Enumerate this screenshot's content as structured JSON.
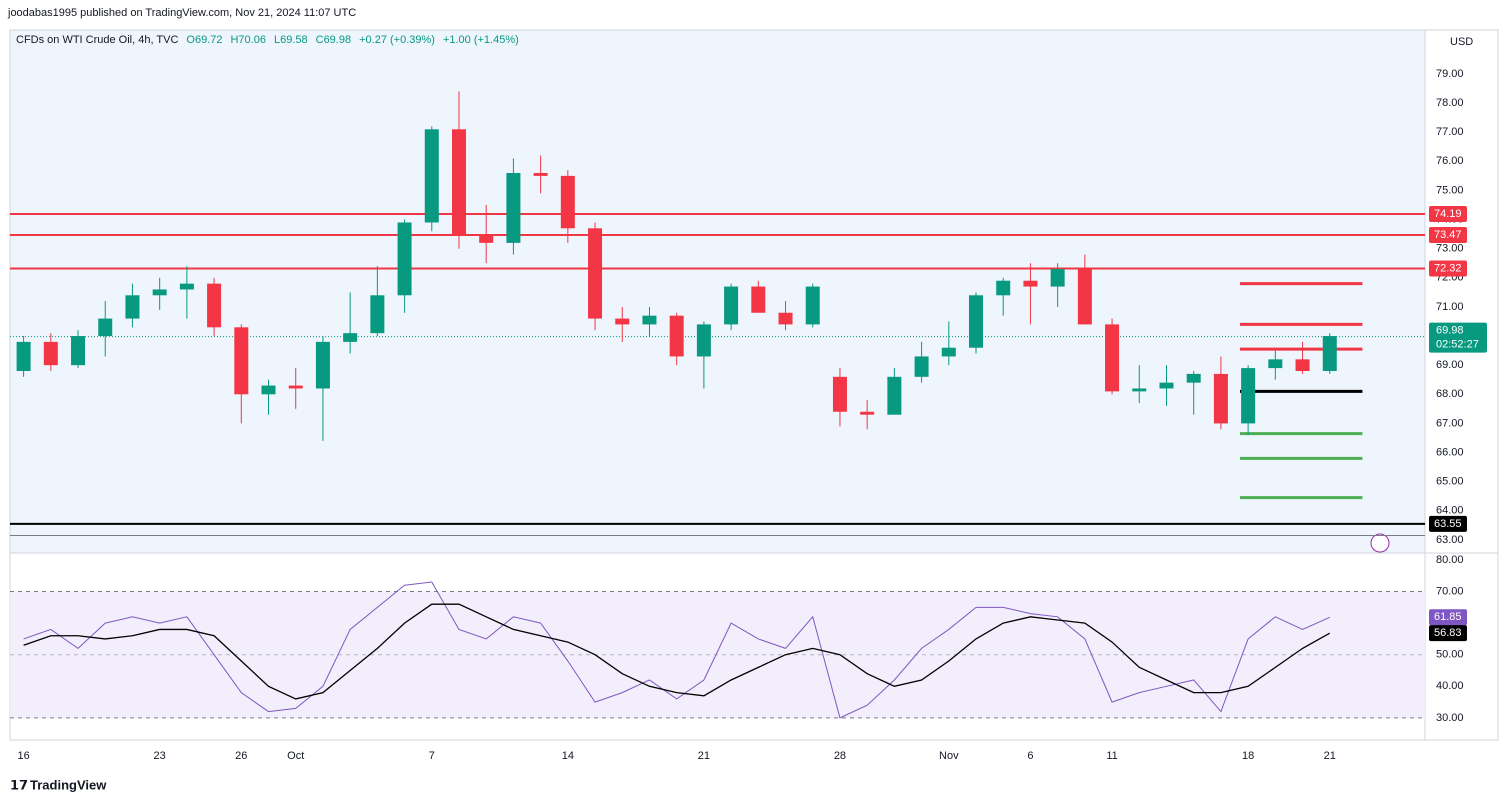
{
  "header": {
    "byline": "joodabas1995 published on TradingView.com, Nov 21, 2024 11:07 UTC",
    "symbol": "CFDs on WTI Crude Oil, 4h, TVC",
    "ohlc": [
      "O69.72",
      "H70.06",
      "L69.58",
      "C69.98"
    ],
    "change": "+0.27 (+0.39%)",
    "change2": "+1.00 (+1.45%)",
    "currency": "USD",
    "brand": "TradingView"
  },
  "chart_data": [
    {
      "type": "candlestick",
      "up_color": "#089981",
      "down_color": "#f23645",
      "xlim": [
        -0.5,
        51.5
      ],
      "xticks": [
        {
          "value": 0,
          "label": "16"
        },
        {
          "value": 5,
          "label": "23"
        },
        {
          "value": 8,
          "label": "26"
        },
        {
          "value": 10,
          "label": "Oct"
        },
        {
          "value": 15,
          "label": "7"
        },
        {
          "value": 20,
          "label": "14"
        },
        {
          "value": 25,
          "label": "21"
        },
        {
          "value": 30,
          "label": "28"
        },
        {
          "value": 34,
          "label": "Nov"
        },
        {
          "value": 37,
          "label": "6"
        },
        {
          "value": 40,
          "label": "11"
        },
        {
          "value": 45,
          "label": "18"
        },
        {
          "value": 48,
          "label": "21"
        }
      ],
      "ylim": [
        62.55,
        80.51
      ],
      "yticks": [
        {
          "value": 63,
          "label": "63.00"
        },
        {
          "value": 64,
          "label": "64.00"
        },
        {
          "value": 65,
          "label": "65.00"
        },
        {
          "value": 66,
          "label": "66.00"
        },
        {
          "value": 67,
          "label": "67.00"
        },
        {
          "value": 68,
          "label": "68.00"
        },
        {
          "value": 69,
          "label": "69.00"
        },
        {
          "value": 70,
          "label": "70.00"
        },
        {
          "value": 71,
          "label": "71.00"
        },
        {
          "value": 72,
          "label": "72.00"
        },
        {
          "value": 73,
          "label": "73.00"
        },
        {
          "value": 74,
          "label": "74.00"
        },
        {
          "value": 75,
          "label": "75.00"
        },
        {
          "value": 76,
          "label": "76.00"
        },
        {
          "value": 77,
          "label": "77.00"
        },
        {
          "value": 78,
          "label": "78.00"
        },
        {
          "value": 79,
          "label": "79.00"
        }
      ],
      "ohlc": [
        [
          68.8,
          70.0,
          68.6,
          69.8
        ],
        [
          69.8,
          70.1,
          68.8,
          69.0
        ],
        [
          69.0,
          70.2,
          68.9,
          70.0
        ],
        [
          70.0,
          71.2,
          69.3,
          70.6
        ],
        [
          70.6,
          71.8,
          70.3,
          71.4
        ],
        [
          71.4,
          72.0,
          70.9,
          71.6
        ],
        [
          71.6,
          72.4,
          70.6,
          71.8
        ],
        [
          71.8,
          72.0,
          70.0,
          70.3
        ],
        [
          70.3,
          70.4,
          67.0,
          68.0
        ],
        [
          68.0,
          68.5,
          67.3,
          68.3
        ],
        [
          68.3,
          68.9,
          67.5,
          68.2
        ],
        [
          68.2,
          70.0,
          66.4,
          69.8
        ],
        [
          69.8,
          71.5,
          69.4,
          70.1
        ],
        [
          70.1,
          72.4,
          70.0,
          71.4
        ],
        [
          71.4,
          74.0,
          70.8,
          73.9
        ],
        [
          73.9,
          77.2,
          73.6,
          77.1
        ],
        [
          77.1,
          78.4,
          73.0,
          73.5
        ],
        [
          73.5,
          74.5,
          72.5,
          73.2
        ],
        [
          73.2,
          76.1,
          72.8,
          75.6
        ],
        [
          75.6,
          76.2,
          74.9,
          75.5
        ],
        [
          75.5,
          75.7,
          73.2,
          73.7
        ],
        [
          73.7,
          73.9,
          70.2,
          70.6
        ],
        [
          70.6,
          71.0,
          69.8,
          70.4
        ],
        [
          70.4,
          71.0,
          70.0,
          70.7
        ],
        [
          70.7,
          70.8,
          69.0,
          69.3
        ],
        [
          69.3,
          70.5,
          68.2,
          70.4
        ],
        [
          70.4,
          71.8,
          70.2,
          71.7
        ],
        [
          71.7,
          71.9,
          70.8,
          70.8
        ],
        [
          70.8,
          71.2,
          70.2,
          70.4
        ],
        [
          70.4,
          71.8,
          70.3,
          71.7
        ],
        [
          68.6,
          68.9,
          66.9,
          67.4
        ],
        [
          67.4,
          67.8,
          66.8,
          67.3
        ],
        [
          67.3,
          68.9,
          67.3,
          68.6
        ],
        [
          68.6,
          69.8,
          68.4,
          69.3
        ],
        [
          69.3,
          70.5,
          69.0,
          69.6
        ],
        [
          69.6,
          71.5,
          69.4,
          71.4
        ],
        [
          71.4,
          72.0,
          70.7,
          71.9
        ],
        [
          71.9,
          72.5,
          70.4,
          71.7
        ],
        [
          71.7,
          72.5,
          71.0,
          72.3
        ],
        [
          72.3,
          72.8,
          70.4,
          70.4
        ],
        [
          70.4,
          70.6,
          68.0,
          68.1
        ],
        [
          68.1,
          69.0,
          67.7,
          68.2
        ],
        [
          68.2,
          69.0,
          67.6,
          68.4
        ],
        [
          68.4,
          68.8,
          67.3,
          68.7
        ],
        [
          68.7,
          69.3,
          66.8,
          67.0
        ],
        [
          67.0,
          69.0,
          66.6,
          68.9
        ],
        [
          68.9,
          69.5,
          68.5,
          69.2
        ],
        [
          69.2,
          69.8,
          68.7,
          68.8
        ],
        [
          68.8,
          70.1,
          68.7,
          70.0
        ]
      ],
      "levels": [
        {
          "value": 74.19,
          "color": "#f23645",
          "start": -0.5,
          "end": 51.5,
          "label": true
        },
        {
          "value": 73.47,
          "color": "#f23645",
          "start": -0.5,
          "end": 51.5,
          "label": true
        },
        {
          "value": 72.32,
          "color": "#f23645",
          "start": -0.5,
          "end": 51.5,
          "label": true
        },
        {
          "value": 71.8,
          "color": "#f23645",
          "start": 44.7,
          "end": 49.2,
          "label": false
        },
        {
          "value": 70.4,
          "color": "#f23645",
          "start": 44.7,
          "end": 49.2,
          "label": false
        },
        {
          "value": 69.55,
          "color": "#f23645",
          "start": 44.7,
          "end": 49.2,
          "label": false
        },
        {
          "value": 68.1,
          "color": "#000000",
          "start": 44.7,
          "end": 49.2,
          "label": false
        },
        {
          "value": 66.65,
          "color": "#4caf50",
          "start": 44.7,
          "end": 49.2,
          "label": false
        },
        {
          "value": 65.8,
          "color": "#4caf50",
          "start": 44.7,
          "end": 49.2,
          "label": false
        },
        {
          "value": 64.45,
          "color": "#4caf50",
          "start": 44.7,
          "end": 49.2,
          "label": false
        },
        {
          "value": 63.55,
          "color": "#000000",
          "start": -0.5,
          "end": 51.5,
          "label": true
        },
        {
          "value": 63.15,
          "color": "#787b86",
          "start": -0.5,
          "end": 51.5,
          "label": false
        }
      ],
      "last_price": 69.98,
      "countdown": "02:52:27",
      "last_color": "#089981"
    },
    {
      "type": "line",
      "xlim": [
        -0.5,
        51.5
      ],
      "ylim": [
        23,
        82.2
      ],
      "yticks": [
        {
          "value": 30,
          "label": "30.00"
        },
        {
          "value": 40,
          "label": "40.00"
        },
        {
          "value": 50,
          "label": "50.00"
        },
        {
          "value": 60,
          "label": "60.00"
        },
        {
          "value": 70,
          "label": "70.00"
        },
        {
          "value": 80,
          "label": "80.00"
        }
      ],
      "band": [
        30,
        70
      ],
      "midline": 50,
      "series": [
        {
          "color": "#7e57c2",
          "values": [
            55,
            58,
            52,
            60,
            62,
            60,
            62,
            50,
            38,
            32,
            33,
            40,
            58,
            65,
            72,
            73,
            58,
            55,
            62,
            60,
            48,
            35,
            38,
            42,
            36,
            42,
            60,
            55,
            52,
            62,
            30,
            34,
            42,
            52,
            58,
            65,
            65,
            63,
            62,
            55,
            35,
            38,
            40,
            42,
            32,
            55,
            62,
            58,
            61.85
          ]
        },
        {
          "color": "#000000",
          "values": [
            53,
            56,
            56,
            55,
            56,
            58,
            58,
            56,
            48,
            40,
            36,
            38,
            45,
            52,
            60,
            66,
            66,
            62,
            58,
            56,
            54,
            50,
            44,
            40,
            38,
            37,
            42,
            46,
            50,
            52,
            50,
            44,
            40,
            42,
            48,
            55,
            60,
            62,
            61,
            60,
            54,
            46,
            42,
            38,
            38,
            40,
            46,
            52,
            56.83
          ]
        }
      ]
    }
  ]
}
